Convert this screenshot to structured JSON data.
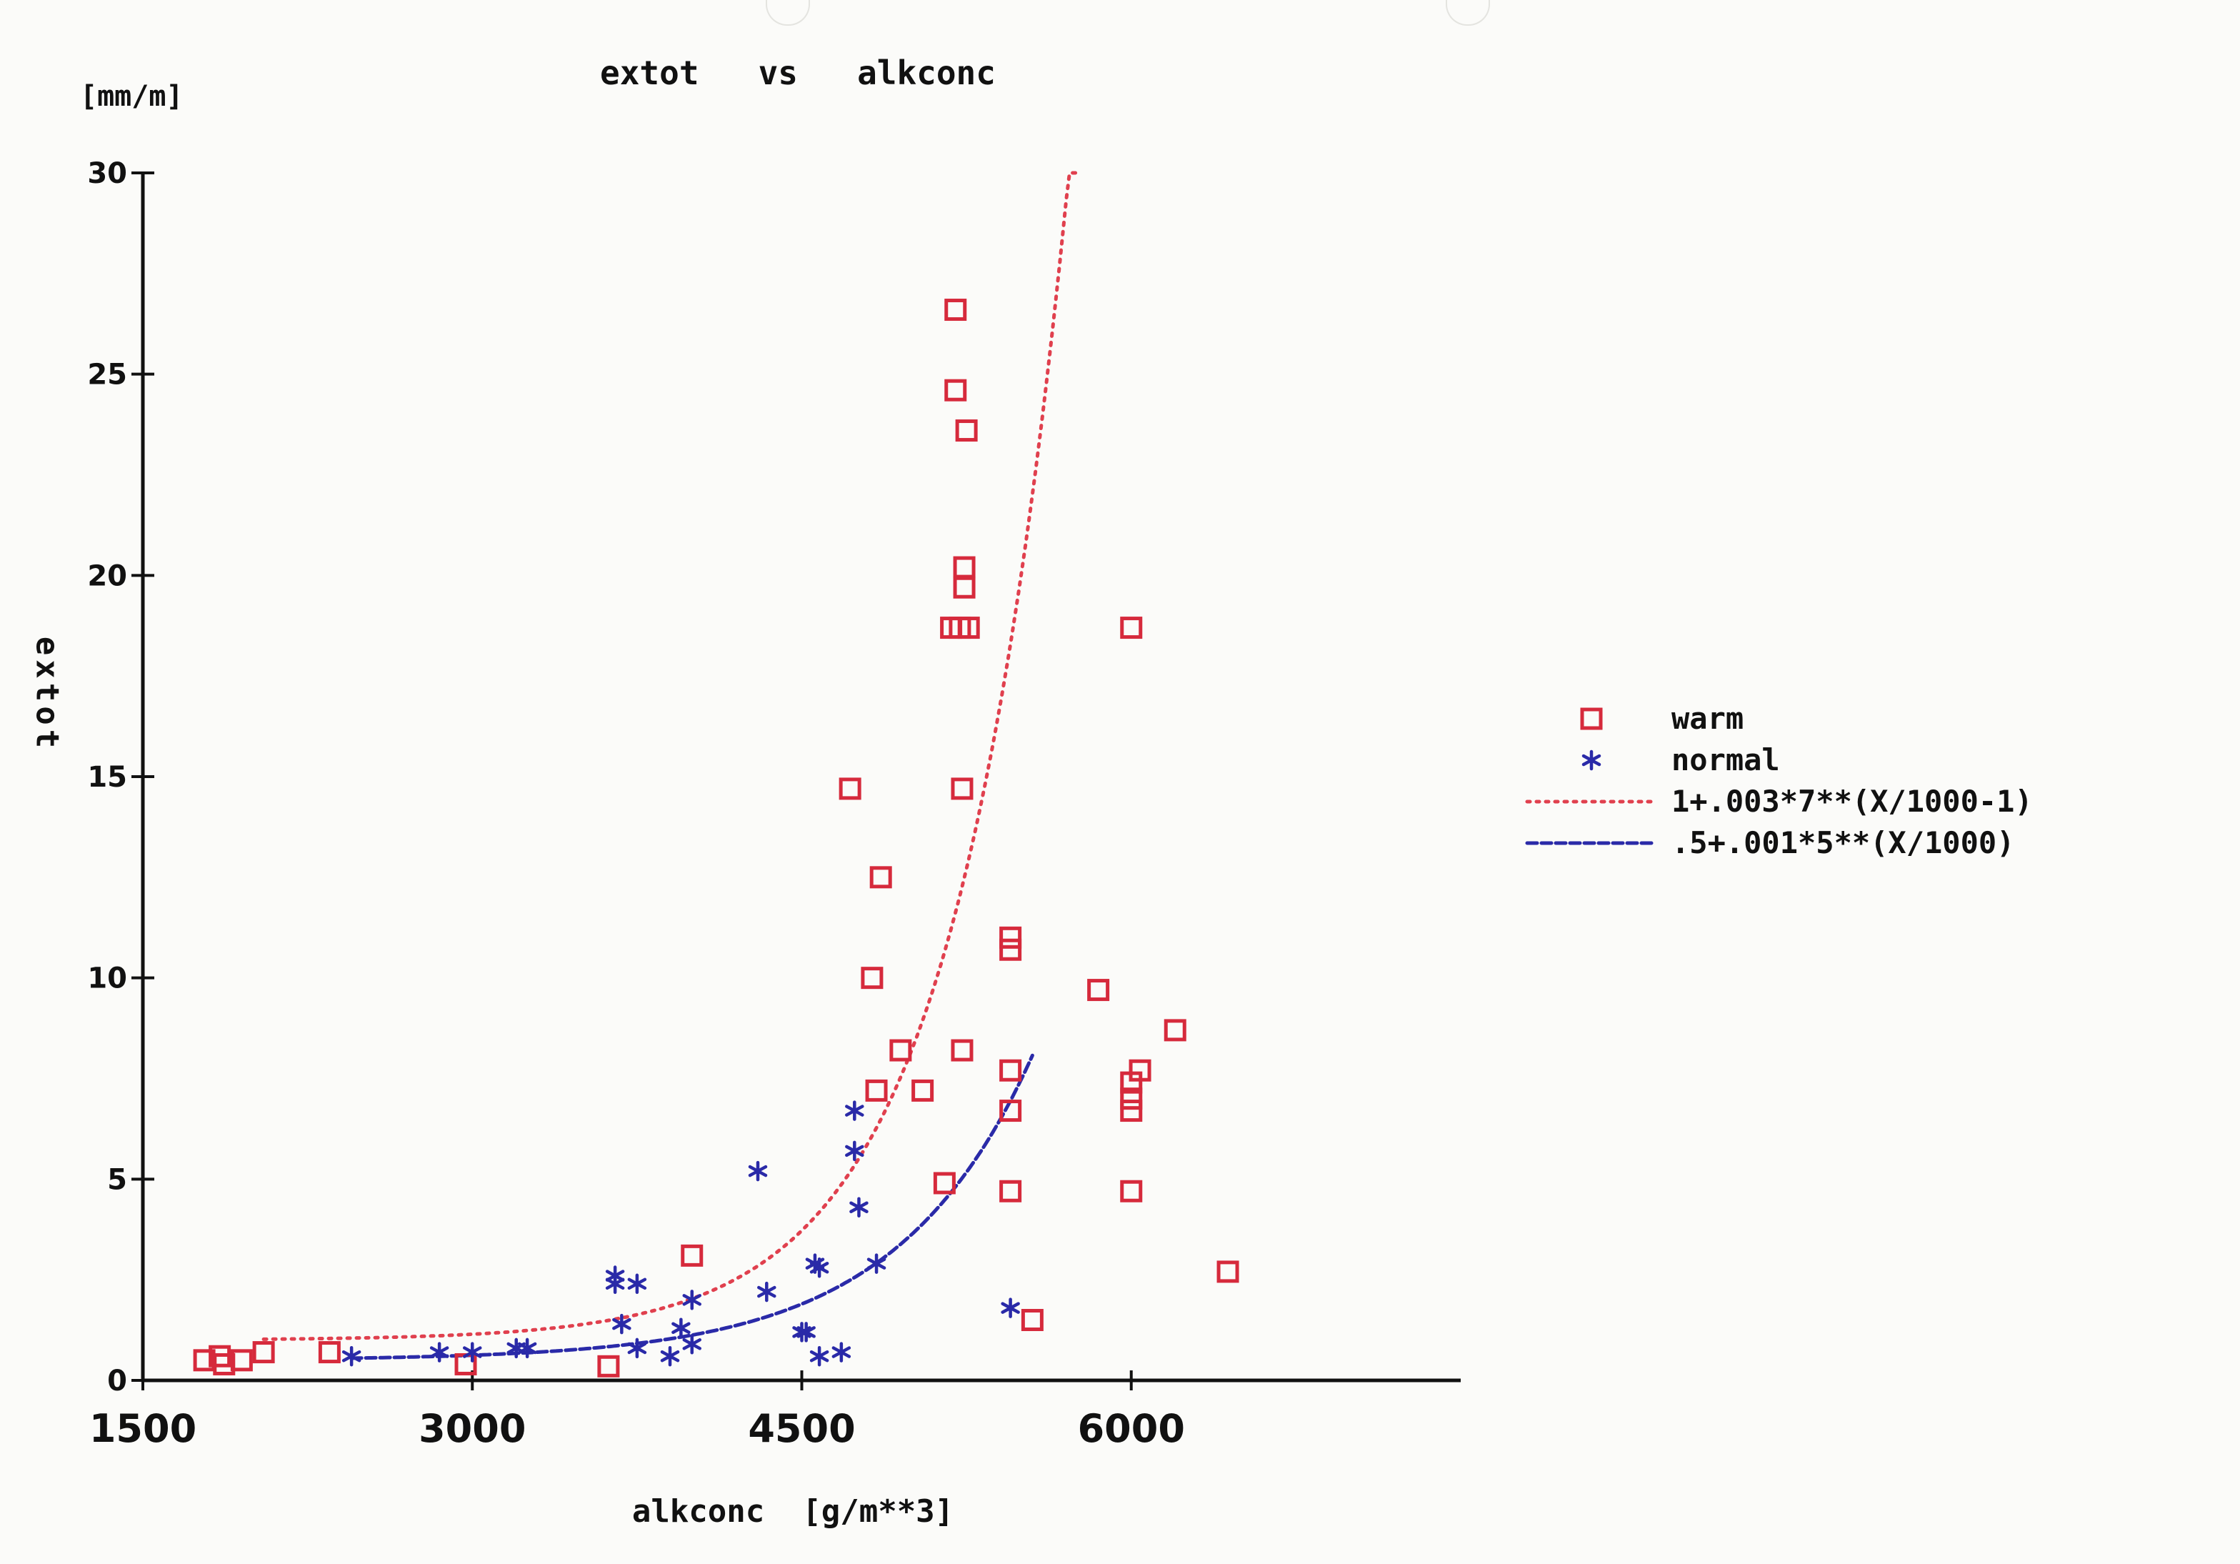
{
  "chart_data": {
    "type": "scatter",
    "title": "extot   vs   alkconc",
    "unit_label": "[mm/m]",
    "xlabel": "alkconc  [g/m**3]",
    "ylabel": "extot",
    "xlim": [
      1500,
      7500
    ],
    "ylim": [
      0,
      30
    ],
    "x_ticks": [
      1500,
      3000,
      4500,
      6000
    ],
    "y_ticks": [
      0,
      5,
      10,
      15,
      20,
      25,
      30
    ],
    "legend_position": "right",
    "grid": false,
    "series": [
      {
        "name": "warm",
        "marker": "square",
        "color": "#d62a3c",
        "points": [
          [
            1780,
            0.5
          ],
          [
            1850,
            0.6
          ],
          [
            1870,
            0.4
          ],
          [
            1950,
            0.5
          ],
          [
            2050,
            0.7
          ],
          [
            2350,
            0.7
          ],
          [
            2970,
            0.4
          ],
          [
            3620,
            0.35
          ],
          [
            4000,
            3.1
          ],
          [
            4720,
            14.7
          ],
          [
            4820,
            10.0
          ],
          [
            4860,
            12.5
          ],
          [
            4840,
            7.2
          ],
          [
            4950,
            8.2
          ],
          [
            5050,
            7.2
          ],
          [
            5150,
            4.9
          ],
          [
            5200,
            26.6
          ],
          [
            5200,
            24.6
          ],
          [
            5250,
            23.6
          ],
          [
            5240,
            20.2
          ],
          [
            5240,
            19.7
          ],
          [
            5180,
            18.7
          ],
          [
            5220,
            18.7
          ],
          [
            5260,
            18.7
          ],
          [
            5230,
            14.7
          ],
          [
            5230,
            8.2
          ],
          [
            5450,
            11.0
          ],
          [
            5450,
            10.7
          ],
          [
            5450,
            7.7
          ],
          [
            5450,
            6.7
          ],
          [
            5450,
            4.7
          ],
          [
            5550,
            1.5
          ],
          [
            5850,
            9.7
          ],
          [
            6000,
            18.7
          ],
          [
            6000,
            7.4
          ],
          [
            6000,
            7.0
          ],
          [
            6000,
            6.7
          ],
          [
            6000,
            4.7
          ],
          [
            6040,
            7.7
          ],
          [
            6200,
            8.7
          ],
          [
            6440,
            2.7
          ]
        ]
      },
      {
        "name": "normal",
        "marker": "asterisk",
        "color": "#2a2aa8",
        "points": [
          [
            2450,
            0.6
          ],
          [
            2850,
            0.7
          ],
          [
            3000,
            0.7
          ],
          [
            3200,
            0.8
          ],
          [
            3250,
            0.8
          ],
          [
            3650,
            2.6
          ],
          [
            3650,
            2.4
          ],
          [
            3750,
            2.4
          ],
          [
            3680,
            1.4
          ],
          [
            3750,
            0.8
          ],
          [
            3900,
            0.6
          ],
          [
            3950,
            1.3
          ],
          [
            4000,
            2.0
          ],
          [
            4000,
            0.9
          ],
          [
            4300,
            5.2
          ],
          [
            4340,
            2.2
          ],
          [
            4500,
            1.2
          ],
          [
            4520,
            1.2
          ],
          [
            4560,
            2.9
          ],
          [
            4580,
            2.8
          ],
          [
            4580,
            0.6
          ],
          [
            4680,
            0.7
          ],
          [
            4740,
            6.7
          ],
          [
            4740,
            5.7
          ],
          [
            4760,
            4.3
          ],
          [
            4840,
            2.9
          ],
          [
            5450,
            1.8
          ]
        ]
      }
    ],
    "curves": [
      {
        "name": "1+.003*7**(X/1000-1)",
        "style": "dotted",
        "color": "#e0404e",
        "x_range": [
          2050,
          5750
        ]
      },
      {
        "name": ".5+.001*5**(X/1000)",
        "style": "dashed",
        "color": "#2a2aa8",
        "x_range": [
          2450,
          5550
        ]
      }
    ]
  }
}
